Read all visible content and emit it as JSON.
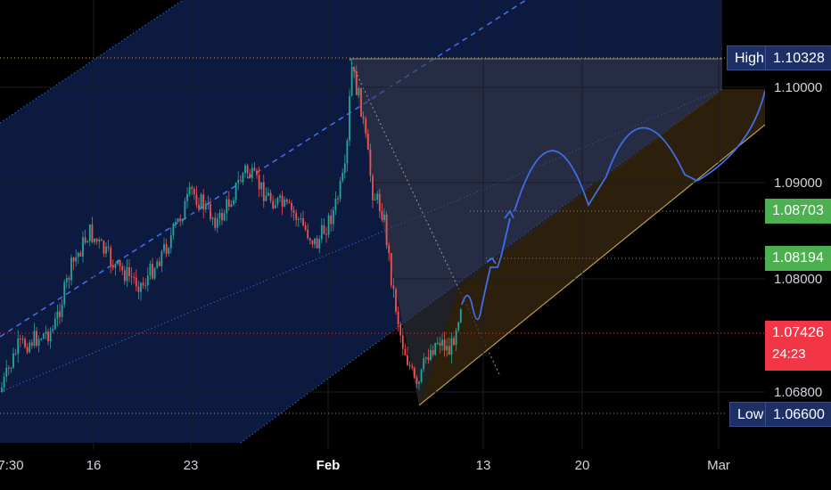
{
  "chart_data": {
    "type": "candlestick",
    "symbol_hint": "",
    "y_axis_labels": [
      "1.10000",
      "1.09000",
      "1.08000",
      "1.06800"
    ],
    "x_axis_labels": [
      "7:30",
      "16",
      "23",
      "Feb",
      "13",
      "20",
      "Mar"
    ],
    "high": {
      "label": "High",
      "value": "1.10328"
    },
    "low": {
      "label": "Low",
      "value": "1.06600"
    },
    "targets": [
      {
        "value": "1.08703",
        "color": "#4caf50"
      },
      {
        "value": "1.08194",
        "color": "#4caf50"
      }
    ],
    "current": {
      "value": "1.07426",
      "countdown": "24:23",
      "color": "#f23645"
    },
    "ylim": [
      1.0648,
      1.1094
    ],
    "grid": true,
    "colors": {
      "up": "#26a69a",
      "down": "#ef5350",
      "channel_fill": "#0c1a40",
      "projection": "#3f6ee8",
      "label_navy": "#1e2f66"
    }
  }
}
